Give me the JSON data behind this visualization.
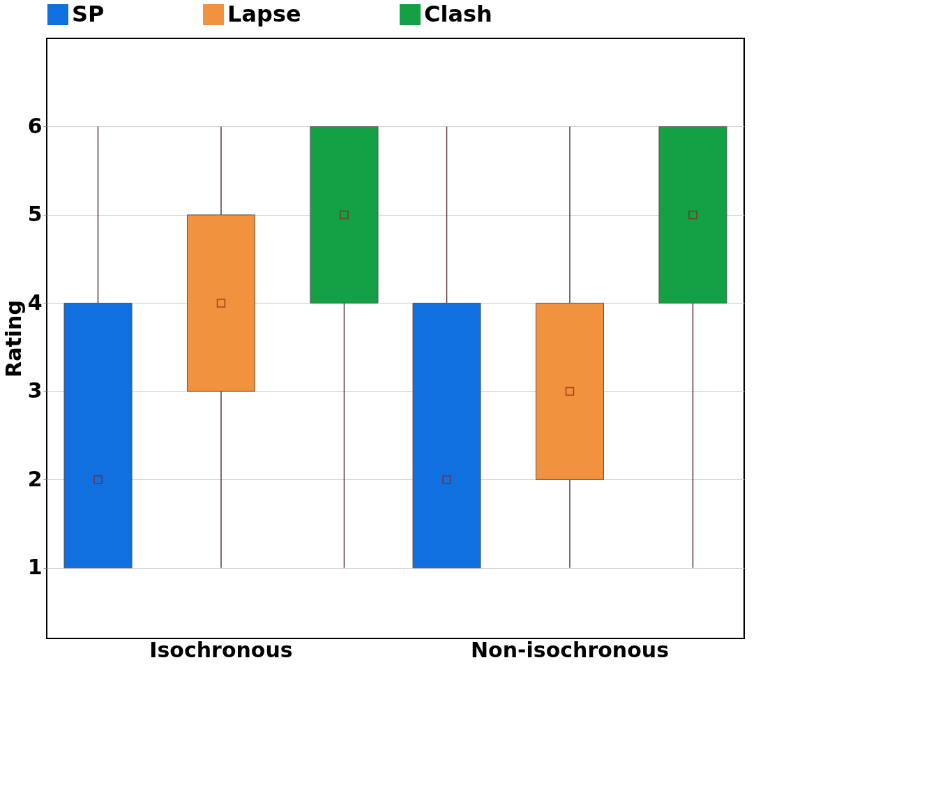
{
  "chart_data": {
    "type": "box",
    "ylabel": "Rating",
    "categories": [
      "Isochronous",
      "Non-isochronous"
    ],
    "series": [
      {
        "name": "SP",
        "color": "#1170e0",
        "boxes": [
          {
            "low": 1,
            "q1": 1,
            "median": 2,
            "q3": 4,
            "high": 6
          },
          {
            "low": 1,
            "q1": 1,
            "median": 2,
            "q3": 4,
            "high": 6
          }
        ]
      },
      {
        "name": "Lapse",
        "color": "#f0923e",
        "boxes": [
          {
            "low": 1,
            "q1": 3,
            "median": 4,
            "q3": 5,
            "high": 6
          },
          {
            "low": 1,
            "q1": 2,
            "median": 3,
            "q3": 4,
            "high": 6
          }
        ]
      },
      {
        "name": "Clash",
        "color": "#14a044",
        "boxes": [
          {
            "low": 1,
            "q1": 4,
            "median": 5,
            "q3": 6,
            "high": 6
          },
          {
            "low": 1,
            "q1": 4,
            "median": 5,
            "q3": 6,
            "high": 6
          }
        ]
      }
    ],
    "ylim": [
      0.2,
      7
    ],
    "yticks": [
      1,
      2,
      3,
      4,
      5,
      6
    ],
    "grid": "y",
    "legend": "top",
    "marker": "square"
  }
}
